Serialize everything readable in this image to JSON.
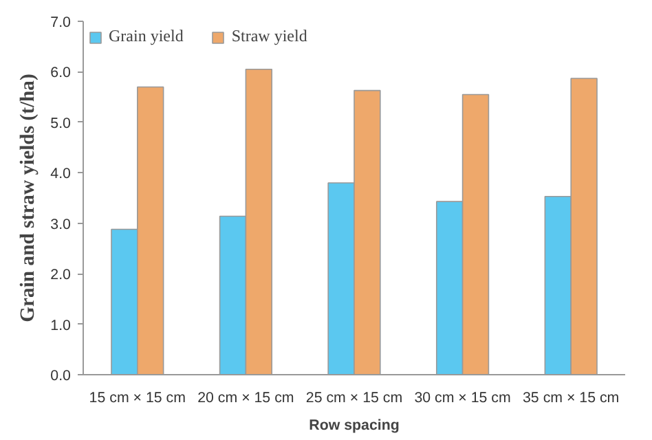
{
  "chart_data": {
    "type": "bar",
    "xlabel": "Row spacing",
    "ylabel": "Grain and straw yields (t/ha)",
    "categories": [
      "15 cm × 15 cm",
      "20 cm × 15 cm",
      "25 cm × 15 cm",
      "30 cm × 15 cm",
      "35 cm × 15 cm"
    ],
    "series": [
      {
        "name": "Grain yield",
        "color": "#5bc8f0",
        "values": [
          2.88,
          3.14,
          3.8,
          3.43,
          3.53
        ]
      },
      {
        "name": "Straw yield",
        "color": "#eea86b",
        "values": [
          5.7,
          6.05,
          5.63,
          5.55,
          5.87
        ]
      }
    ],
    "ylim": [
      0,
      7
    ],
    "yticks": [
      {
        "value": 0,
        "label": "0.0"
      },
      {
        "value": 1,
        "label": "1.0"
      },
      {
        "value": 2,
        "label": "2.0"
      },
      {
        "value": 3,
        "label": "3.0"
      },
      {
        "value": 4,
        "label": "4.0"
      },
      {
        "value": 5,
        "label": "5.0"
      },
      {
        "value": 6,
        "label": "6.0"
      },
      {
        "value": 7,
        "label": "7.0"
      }
    ],
    "grid": false,
    "legend": "top left"
  }
}
